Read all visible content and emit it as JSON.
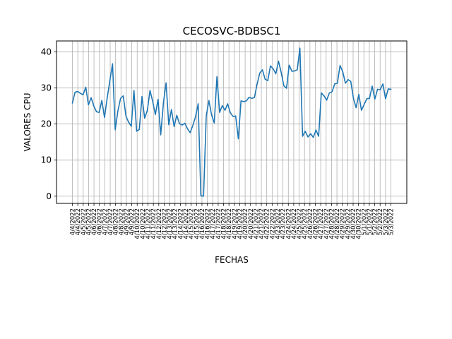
{
  "chart_data": {
    "type": "line",
    "title": "CECOSVC-BDBSC1",
    "xlabel": "FECHAS",
    "ylabel": "VALORES CPU",
    "ylim": [
      -2,
      43
    ],
    "yticks": [
      0,
      10,
      20,
      30,
      40
    ],
    "grid": true,
    "line_color": "#1f77b4",
    "x_tick_labels": [
      "4/4/2022",
      "4/4/2022",
      "4/5/2022",
      "4/5/2022",
      "4/6/2022",
      "4/6/2022",
      "4/7/2022",
      "4/7/2022",
      "4/8/2022",
      "4/8/2022",
      "4/9/2022",
      "4/9/2022",
      "4/10/2022",
      "4/10/2022",
      "4/11/2022",
      "4/11/2022",
      "4/12/2022",
      "4/12/2022",
      "4/13/2022",
      "4/13/2022",
      "4/14/2022",
      "4/14/2022",
      "4/15/2022",
      "4/15/2022",
      "4/16/2022",
      "4/16/2022",
      "4/17/2022",
      "4/17/2022",
      "4/18/2022",
      "4/18/2022",
      "4/19/2022",
      "4/19/2022",
      "4/20/2022",
      "4/20/2022",
      "4/21/2022",
      "4/21/2022",
      "4/22/2022",
      "4/22/2022",
      "4/23/2022",
      "4/23/2022",
      "4/24/2022",
      "4/24/2022",
      "4/25/2022",
      "4/25/2022",
      "4/26/2022",
      "4/26/2022",
      "4/27/2022",
      "4/27/2022",
      "4/28/2022",
      "4/28/2022",
      "4/29/2022",
      "4/29/2022",
      "4/30/2022",
      "4/30/2022",
      "5/1/2022",
      "5/1/2022",
      "5/2/2022",
      "5/2/2022",
      "5/3/2022",
      "5/3/2022"
    ],
    "series": [
      {
        "values": [
          25.8,
          28.8,
          29.0,
          28.5,
          28.1,
          30.2,
          25.3,
          27.3,
          25.0,
          23.4,
          23.2,
          26.5,
          21.8,
          27.2,
          32.0,
          36.7,
          18.4,
          23.6,
          27.1,
          27.8,
          22.2,
          20.5,
          19.4,
          29.3,
          18.0,
          18.5,
          27.6,
          21.6,
          23.8,
          29.3,
          26.2,
          22.6,
          26.8,
          17.0,
          25.8,
          31.4,
          19.8,
          24.0,
          19.3,
          22.4,
          20.1,
          19.7,
          20.2,
          18.7,
          17.6,
          19.6,
          22.0,
          25.6,
          0.1,
          0.0,
          22.2,
          26.5,
          22.5,
          20.3,
          33.1,
          23.2,
          25.1,
          23.8,
          25.6,
          23.1,
          22.1,
          22.2,
          15.9,
          26.4,
          26.2,
          26.4,
          27.4,
          27.1,
          27.3,
          31.0,
          34.1,
          35.0,
          32.4,
          32.0,
          36.1,
          35.3,
          33.9,
          37.4,
          34.3,
          30.6,
          29.9,
          36.3,
          34.6,
          34.7,
          35.0,
          41.0,
          16.6,
          18.0,
          16.4,
          17.3,
          16.3,
          18.3,
          16.6,
          28.6,
          27.8,
          26.6,
          28.6,
          28.9,
          31.1,
          31.3,
          36.2,
          34.5,
          31.3,
          32.3,
          31.8,
          27.1,
          24.5,
          28.2,
          23.8,
          25.4,
          27.0,
          27.1,
          30.5,
          26.9,
          29.6,
          29.5,
          31.1,
          27.0,
          29.7,
          29.6
        ]
      }
    ]
  }
}
